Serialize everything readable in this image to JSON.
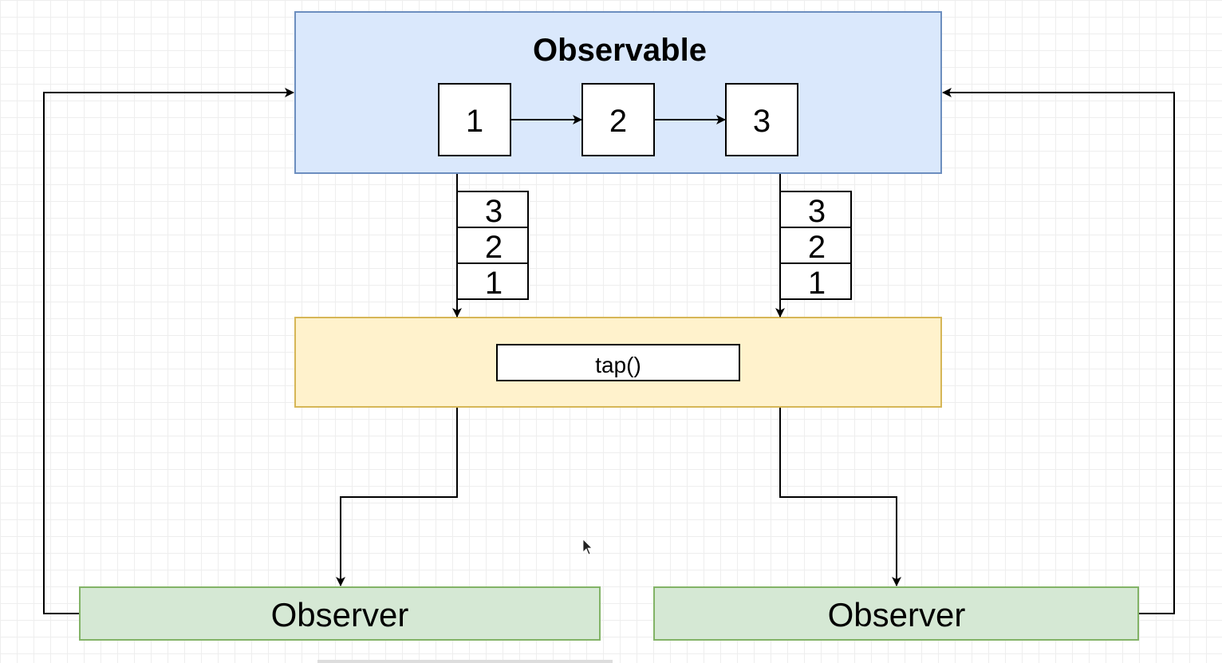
{
  "observable": {
    "title": "Observable",
    "values": [
      "1",
      "2",
      "3"
    ],
    "fill": "#dae8fc",
    "stroke": "#6c8ebf"
  },
  "buffers": {
    "left": [
      "3",
      "2",
      "1"
    ],
    "right": [
      "3",
      "2",
      "1"
    ]
  },
  "operator": {
    "label": "tap()",
    "fill": "#fff2cc",
    "stroke": "#d6b656"
  },
  "observers": {
    "left": "Observer",
    "right": "Observer",
    "fill": "#d5e8d4",
    "stroke": "#82b366"
  },
  "connector_color": "#000000"
}
